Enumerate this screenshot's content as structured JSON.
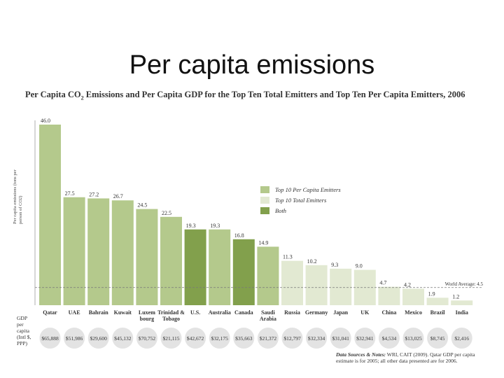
{
  "slide": {
    "title": "Per capita emissions"
  },
  "chart_data": {
    "type": "bar",
    "title": "Per Capita CO2 Emissions and Per Capita GDP for the Top Ten Total Emitters and Top Ten Per Capita Emitters, 2006",
    "title_parts": {
      "before_sub": "Per Capita CO",
      "sub": "2",
      "after_sub": " Emissions and Per Capita GDP for the Top Ten Total Emitters and Top Ten Per Capita Emitters, 2006"
    },
    "ylabel": "Per capita emissions (tons per person of CO2)",
    "ylim": [
      0,
      48
    ],
    "categories": [
      "Qatar",
      "UAE",
      "Bahrain",
      "Kuwait",
      "Luxem-bourg",
      "Trinidad & Tobago",
      "U.S.",
      "Australia",
      "Canada",
      "Saudi Arabia",
      "Russia",
      "Germany",
      "Japan",
      "UK",
      "China",
      "Mexico",
      "Brazil",
      "India"
    ],
    "values": [
      46.0,
      27.5,
      27.2,
      26.7,
      24.5,
      22.5,
      19.3,
      19.3,
      16.8,
      14.9,
      11.3,
      10.2,
      9.3,
      9.0,
      4.7,
      4.2,
      1.9,
      1.2
    ],
    "value_labels": [
      "46.0",
      "27.5",
      "27.2",
      "26.7",
      "24.5",
      "22.5",
      "19.3",
      "19.3",
      "16.8",
      "14.9",
      "11.3",
      "10.2",
      "9.3",
      "9.0",
      "4.7",
      "4.2",
      "1.9",
      "1.2"
    ],
    "groups": [
      "percap",
      "percap",
      "percap",
      "percap",
      "percap",
      "percap",
      "both",
      "percap",
      "both",
      "percap",
      "total",
      "total",
      "total",
      "total",
      "total",
      "total",
      "total",
      "total"
    ],
    "gdp_header": "GDP per capita (Intl $, PPP)",
    "gdp_values": [
      "$65,888",
      "$51,986",
      "$29,600",
      "$45,132",
      "$70,752",
      "$21,115",
      "$42,672",
      "$32,175",
      "$35,663",
      "$21,372",
      "$12,797",
      "$32,334",
      "$31,041",
      "$32,941",
      "$4,534",
      "$13,025",
      "$8,745",
      "$2,416"
    ],
    "world_average_label": "World Average: 4.5",
    "world_average": 4.5,
    "legend": [
      {
        "key": "percap",
        "label": "Top 10 Per Capita Emitters",
        "color": "#b4c98c"
      },
      {
        "key": "total",
        "label": "Top 10 Total Emitters",
        "color": "#e2e9d2"
      },
      {
        "key": "both",
        "label": "Both",
        "color": "#82a04c"
      }
    ],
    "legend_position": "right",
    "source_bold": "Data Sources & Notes:",
    "source_text": "WRI, CAIT (2009). Qatar GDP per capita estimate is for 2005; all other data presented are for 2006."
  }
}
